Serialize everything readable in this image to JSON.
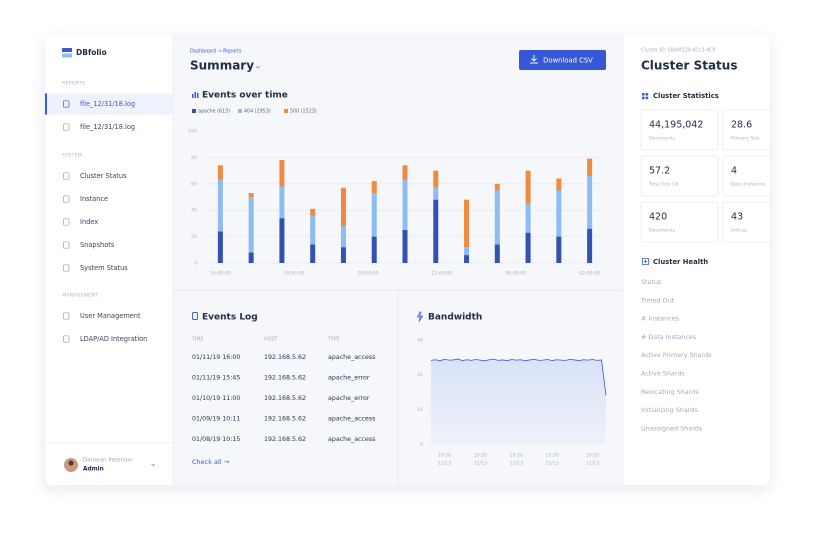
{
  "sidebar": {
    "brand": "DBfolio",
    "sections": [
      {
        "title": "REPORTS",
        "items": [
          "file_12/31/18.log",
          "file_12/31/18.log"
        ]
      },
      {
        "title": "SYSTEM",
        "items": [
          "Cluster Status",
          "Instance",
          "Index",
          "Snapshots",
          "System Status"
        ]
      },
      {
        "title": "MANAGEMENT",
        "items": [
          "User Management",
          "LDAP/AD Integration"
        ]
      }
    ],
    "user": {
      "name": "Dameon Peterson",
      "role": "Admin"
    }
  },
  "header": {
    "breadcrumb": "Dashboard → Reports",
    "title": "Summary",
    "button": "Download CSV"
  },
  "chart_data": [
    {
      "type": "bar",
      "stacked": true,
      "title": "Events over time",
      "x": [
        0,
        1,
        2,
        3,
        4,
        5,
        6,
        7,
        8,
        9,
        10,
        11,
        12
      ],
      "xlim": [
        -0.5,
        12.5
      ],
      "xticks": [
        {
          "value": 0,
          "label": "16:00:00"
        },
        {
          "value": 2.4,
          "label": "18:00:00"
        },
        {
          "value": 4.8,
          "label": "20:00:00"
        },
        {
          "value": 7.2,
          "label": "22:00:00"
        },
        {
          "value": 9.6,
          "label": "00:00:00"
        },
        {
          "value": 12,
          "label": "02:00:00"
        }
      ],
      "ylim": [
        0,
        100
      ],
      "yticks": [
        0,
        20,
        40,
        60,
        80,
        100
      ],
      "grid": true,
      "series": [
        {
          "name": "apache (613)",
          "color": "#3451b2",
          "values": [
            24,
            8,
            34,
            14,
            12,
            20,
            25,
            48,
            6,
            14,
            23,
            20,
            26
          ]
        },
        {
          "name": "404 (2953)",
          "color": "#8dbcf2",
          "values": [
            39,
            42,
            24,
            22,
            16,
            33,
            38,
            9,
            6,
            41,
            22,
            35,
            40
          ]
        },
        {
          "name": "500 (1523)",
          "color": "#ef8a3f",
          "values": [
            11,
            3,
            20,
            5,
            29,
            9,
            11,
            13,
            36,
            5,
            25,
            9,
            13
          ]
        }
      ]
    },
    {
      "type": "line",
      "area": true,
      "title": "Bandwidth",
      "x": [
        0,
        1,
        2,
        3,
        4,
        5,
        6,
        7,
        8,
        9,
        10,
        11,
        12,
        13,
        14,
        15,
        16,
        17,
        18,
        19,
        20,
        21,
        22,
        23,
        24,
        25,
        26,
        27,
        28,
        29,
        30,
        31,
        32,
        33,
        34,
        35,
        36,
        37,
        38,
        39
      ],
      "xlim": [
        0,
        39
      ],
      "xticks": [
        {
          "value": 3,
          "label": "10:20"
        },
        {
          "value": 11,
          "label": "10:20"
        },
        {
          "value": 19,
          "label": "10:20"
        },
        {
          "value": 27,
          "label": "10:20"
        },
        {
          "value": 36,
          "label": "10:20"
        }
      ],
      "x_dates": [
        "11/13",
        "11/13",
        "11/13",
        "11/13",
        "11/13"
      ],
      "ylim": [
        0,
        48
      ],
      "yticks": [
        0,
        16,
        32,
        48
      ],
      "grid": false,
      "color": "#3b5bd6",
      "values": [
        38.6,
        38.9,
        38.4,
        39.1,
        38.7,
        38.8,
        39.2,
        38.5,
        38.9,
        38.6,
        39,
        38.7,
        38.4,
        38.9,
        39.1,
        38.6,
        38.8,
        38.5,
        39,
        38.7,
        38.9,
        38.4,
        38.8,
        39.1,
        38.6,
        38.7,
        39,
        38.5,
        38.9,
        38.7,
        38.6,
        39.1,
        38.8,
        38.5,
        38.9,
        38.7,
        39,
        38.6,
        38.8,
        22.5
      ]
    }
  ],
  "events_log": {
    "title": "Events Log",
    "columns": [
      "TIME",
      "HOST",
      "TYPE"
    ],
    "rows": [
      [
        "01/11/19 16:00",
        "192.168.5.62",
        "apache_access"
      ],
      [
        "01/11/19 15:45",
        "192.168.5.62",
        "apache_error"
      ],
      [
        "01/10/19 11:00",
        "192.168.5.62",
        "apache_error"
      ],
      [
        "01/09/19 10:11",
        "192.168.5.62",
        "apache_access"
      ],
      [
        "01/08/19 10:15",
        "192.168.5.62",
        "apache_access"
      ]
    ],
    "link": "Check all →"
  },
  "cluster": {
    "id": "Cluster ID: 58d4f229-41c3-4f3f",
    "title": "Cluster Status",
    "statistics_title": "Cluster Statistics",
    "stats": [
      {
        "value": "44,195,042",
        "label": "Documents"
      },
      {
        "value": "28.6",
        "label": "Primary Size"
      },
      {
        "value": "57.2",
        "label": "Total Size Gb"
      },
      {
        "value": "4",
        "label": "Data Instances"
      },
      {
        "value": "420",
        "label": "Documents"
      },
      {
        "value": "43",
        "label": "Indices"
      }
    ],
    "health_title": "Cluster Health",
    "health": [
      "Status",
      "Timed Out",
      "# Instances",
      "# Data Instances",
      "Active Primary Shards",
      "Active Shards",
      "Relocating Shards",
      "Initializing Shards",
      "Unassigned Shards"
    ]
  }
}
